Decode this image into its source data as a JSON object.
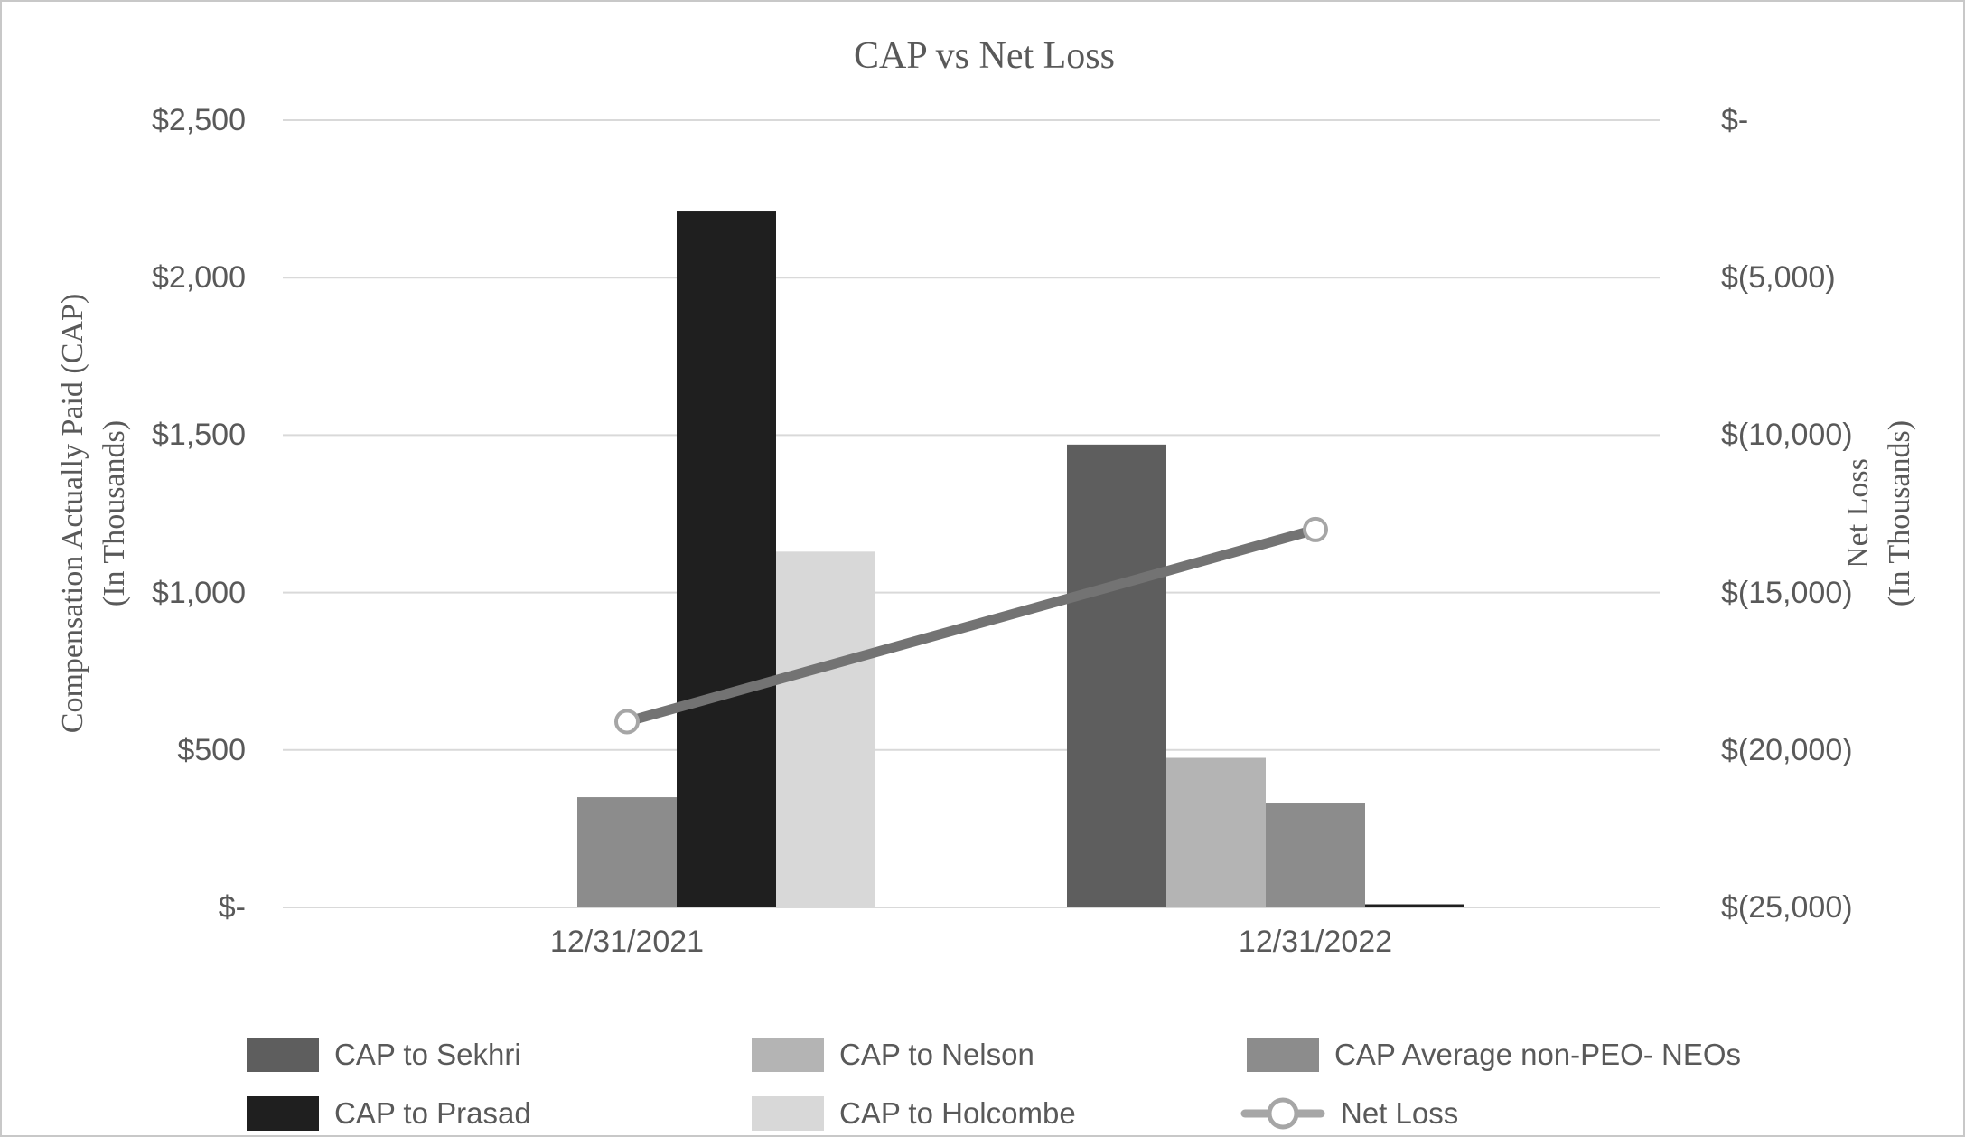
{
  "title": "CAP vs Net Loss",
  "text_color": "#595959",
  "gridline_color": "#d9d9d9",
  "border_color": "#c8c8c8",
  "chart_data": {
    "type": "bar+line",
    "categories": [
      "12/31/2021",
      "12/31/2022"
    ],
    "bar_series": [
      {
        "name": "CAP to Sekhri",
        "color": "#5e5e5e",
        "values": [
          0,
          1470
        ]
      },
      {
        "name": "CAP to Nelson",
        "color": "#b4b4b4",
        "values": [
          0,
          475
        ]
      },
      {
        "name": "CAP Average non-PEO- NEOs",
        "color": "#8c8c8c",
        "values": [
          350,
          330
        ]
      },
      {
        "name": "CAP to Prasad",
        "color": "#1f1f1f",
        "values": [
          2210,
          10
        ]
      },
      {
        "name": "CAP to Holcombe",
        "color": "#d8d8d8",
        "values": [
          1130,
          0
        ]
      }
    ],
    "line_series": {
      "name": "Net Loss",
      "color": "#737373",
      "marker": "circle",
      "marker_color": "#a6a6a6",
      "values": [
        -19100,
        -13000
      ]
    },
    "left_axis": {
      "title_line1": "Compensation Actually Paid (CAP)",
      "title_line2": "(In Thousands)",
      "ticks": [
        "$2,500",
        "$2,000",
        "$1,500",
        "$1,000",
        "$500",
        "$-"
      ],
      "range": [
        0,
        2500
      ]
    },
    "right_axis": {
      "title_line1": "Net Loss",
      "title_line2": "(In Thousands)",
      "ticks": [
        "$-",
        "$(5,000)",
        "$(10,000)",
        "$(15,000)",
        "$(20,000)",
        "$(25,000)"
      ],
      "range": [
        0,
        -25000
      ]
    },
    "legend_position": "bottom",
    "grid": true
  }
}
